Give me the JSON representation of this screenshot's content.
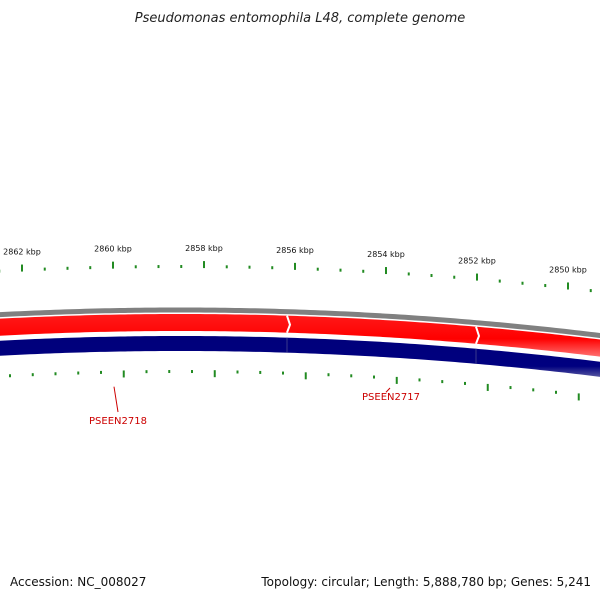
{
  "title": "Pseudomonas entomophila L48, complete genome",
  "footer": {
    "accession": "Accession: NC_008027",
    "summary": "Topology: circular; Length: 5,888,780 bp; Genes: 5,241"
  },
  "scale_labels": [
    "2862 kbp",
    "2860 kbp",
    "2858 kbp",
    "2856 kbp",
    "2854 kbp",
    "2852 kbp",
    "2850 kbp"
  ],
  "genes": [
    {
      "label": "PSEEN2718"
    },
    {
      "label": "PSEEN2717"
    }
  ],
  "colors": {
    "backbone": "#808080",
    "forward_strand": "#ff0000",
    "reverse_strand": "#000080",
    "ticks": "#228b22",
    "gene_label": "#cc0000"
  }
}
